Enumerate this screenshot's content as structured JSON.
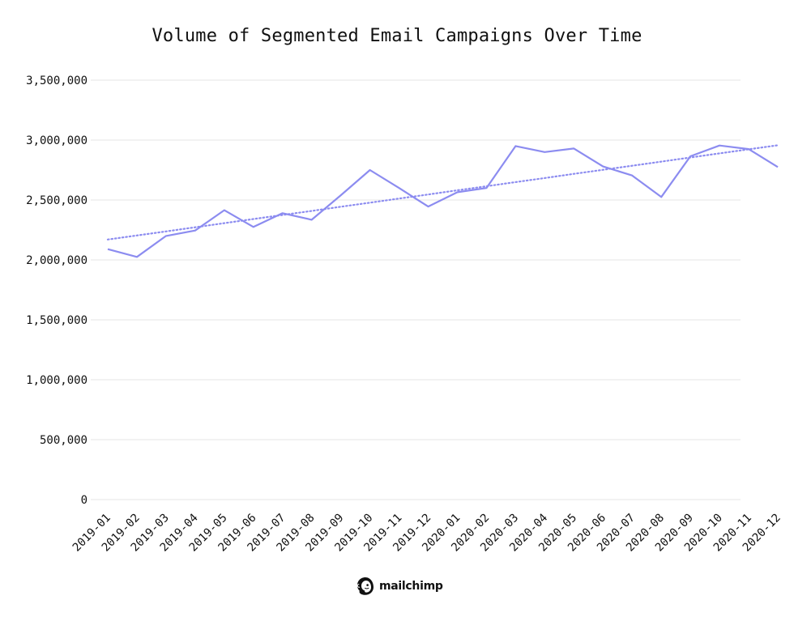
{
  "chart_data": {
    "type": "line",
    "title": "Volume of Segmented Email Campaigns Over Time",
    "xlabel": "",
    "ylabel": "",
    "categories": [
      "2019-01",
      "2019-02",
      "2019-03",
      "2019-04",
      "2019-05",
      "2019-06",
      "2019-07",
      "2019-08",
      "2019-09",
      "2019-10",
      "2019-11",
      "2019-12",
      "2020-01",
      "2020-02",
      "2020-03",
      "2020-04",
      "2020-05",
      "2020-06",
      "2020-07",
      "2020-08",
      "2020-09",
      "2020-10",
      "2020-11",
      "2020-12"
    ],
    "series": [
      {
        "style": "solid",
        "color": "#8c8cf0",
        "values": [
          2090000,
          2025000,
          2200000,
          2245000,
          2415000,
          2275000,
          2390000,
          2335000,
          2540000,
          2750000,
          2600000,
          2445000,
          2565000,
          2600000,
          2950000,
          2900000,
          2930000,
          2780000,
          2705000,
          2525000,
          2865000,
          2955000,
          2925000,
          2775000
        ]
      },
      {
        "style": "dotted",
        "color": "#8c8cf0",
        "values": [
          2170000,
          2204000,
          2238000,
          2272000,
          2307000,
          2341000,
          2375000,
          2409000,
          2444000,
          2478000,
          2512000,
          2546000,
          2581000,
          2615000,
          2649000,
          2683000,
          2718000,
          2752000,
          2786000,
          2820000,
          2855000,
          2889000,
          2923000,
          2957000
        ]
      }
    ],
    "ylim": [
      0,
      3500000
    ],
    "yticks": [
      0,
      500000,
      1000000,
      1500000,
      2000000,
      2500000,
      3000000,
      3500000
    ],
    "ytick_labels": [
      "0",
      "500,000",
      "1,000,000",
      "1,500,000",
      "2,000,000",
      "2,500,000",
      "3,000,000",
      "3,500,000"
    ],
    "grid": true,
    "legend": "none"
  },
  "brand": {
    "name": "mailchimp",
    "logo_icon": "mailchimp-freddie-icon"
  }
}
